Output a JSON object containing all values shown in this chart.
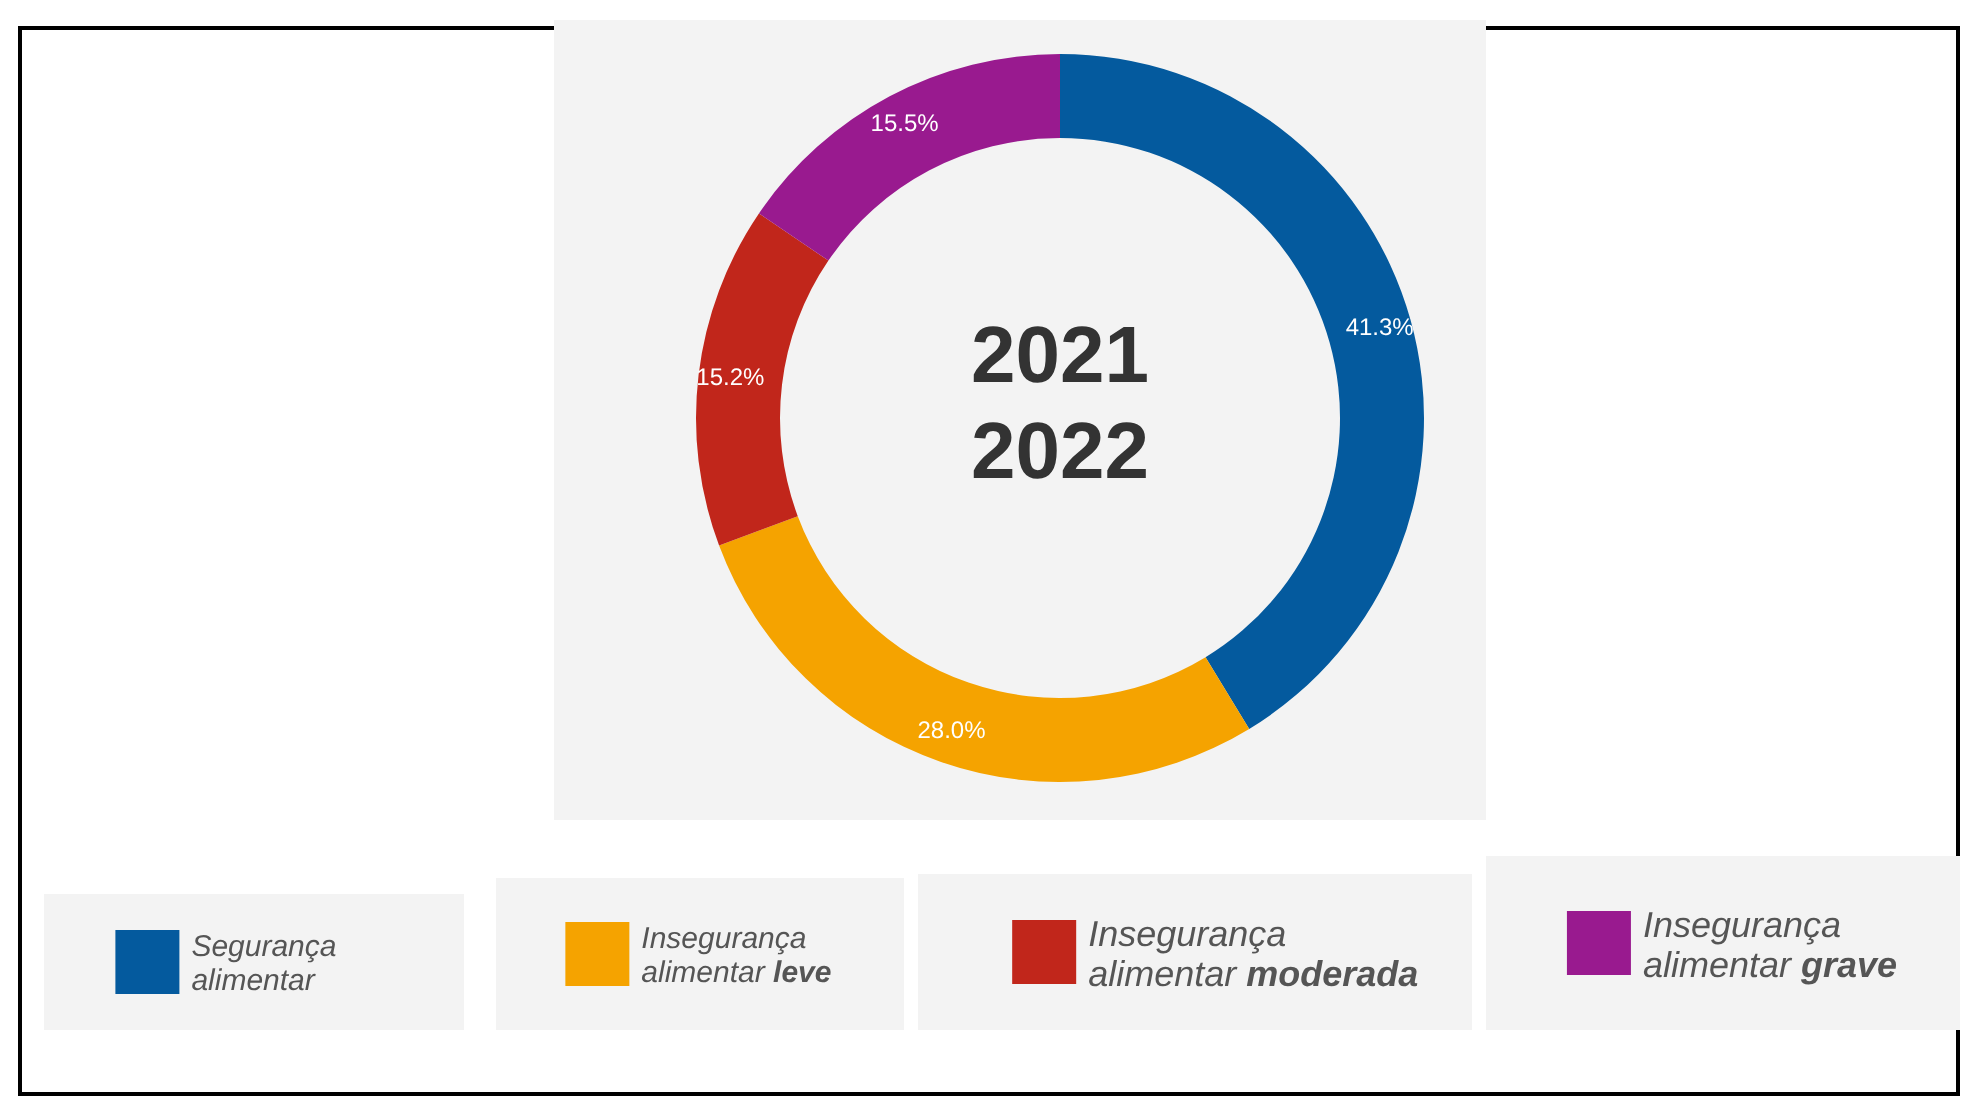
{
  "chart_data": {
    "type": "donut",
    "title": "2021\n2022",
    "categories": [
      "Segurança alimentar",
      "Insegurança alimentar leve",
      "Insegurança alimentar moderada",
      "Insegurança alimentar grave"
    ],
    "values": [
      41.3,
      28.0,
      15.2,
      15.5
    ],
    "colors": [
      "#045a9e",
      "#f5a300",
      "#c1261b",
      "#991a8f"
    ],
    "value_labels": [
      "41.3%",
      "28.0%",
      "15.2%",
      "15.5%"
    ],
    "legend": "bottom"
  }
}
